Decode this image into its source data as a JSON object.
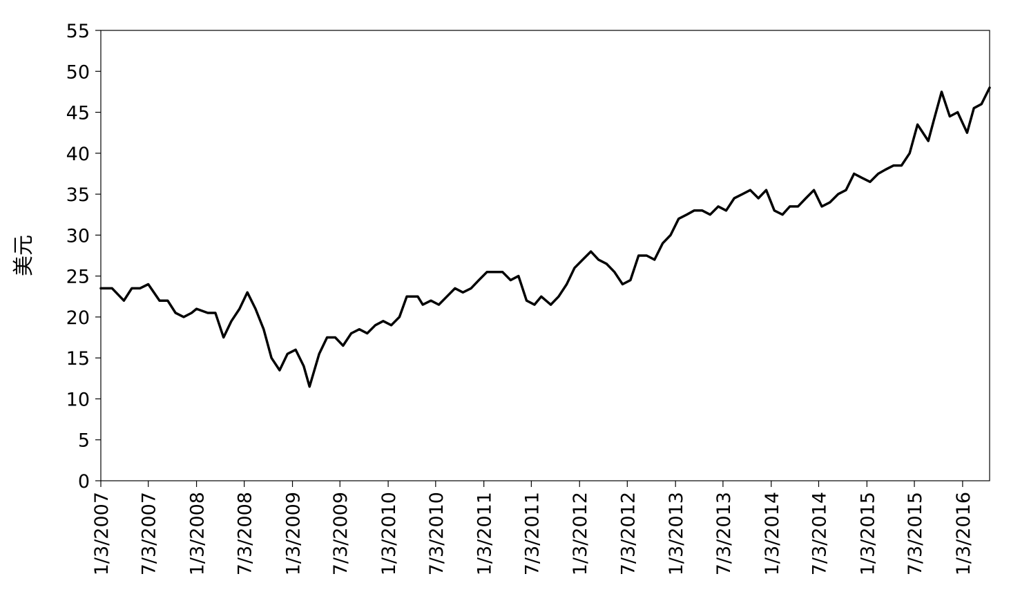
{
  "chart_data": {
    "type": "line",
    "title": "",
    "xlabel": "",
    "ylabel": "美元",
    "ylim": [
      0,
      55
    ],
    "yticks": [
      0,
      5,
      10,
      15,
      20,
      25,
      30,
      35,
      40,
      45,
      50,
      55
    ],
    "xlim": [
      "2007-01-03",
      "2016-04-15"
    ],
    "x_tick_labels": [
      "1/3/2007",
      "7/3/2007",
      "1/3/2008",
      "7/3/2008",
      "1/3/2009",
      "7/3/2009",
      "1/3/2010",
      "7/3/2010",
      "1/3/2011",
      "7/3/2011",
      "1/3/2012",
      "7/3/2012",
      "1/3/2013",
      "7/3/2013",
      "1/3/2014",
      "7/3/2014",
      "1/3/2015",
      "7/3/2015",
      "1/3/2016"
    ],
    "grid": false,
    "legend": "none",
    "line_color": "#000000",
    "series": [
      {
        "x": [
          "2007-01-03",
          "2007-02-15",
          "2007-04-01",
          "2007-05-01",
          "2007-06-01",
          "2007-07-03",
          "2007-08-15",
          "2007-09-15",
          "2007-10-15",
          "2007-11-15",
          "2007-12-15",
          "2008-01-03",
          "2008-02-15",
          "2008-03-15",
          "2008-04-15",
          "2008-05-15",
          "2008-06-15",
          "2008-07-15",
          "2008-08-15",
          "2008-09-15",
          "2008-10-15",
          "2008-11-15",
          "2008-12-15",
          "2009-01-15",
          "2009-02-15",
          "2009-03-09",
          "2009-04-15",
          "2009-05-15",
          "2009-06-15",
          "2009-07-15",
          "2009-08-15",
          "2009-09-15",
          "2009-10-15",
          "2009-11-15",
          "2009-12-15",
          "2010-01-15",
          "2010-02-15",
          "2010-03-15",
          "2010-04-26",
          "2010-05-15",
          "2010-06-15",
          "2010-07-15",
          "2010-08-15",
          "2010-09-15",
          "2010-10-15",
          "2010-11-15",
          "2010-12-15",
          "2011-01-15",
          "2011-02-15",
          "2011-03-15",
          "2011-04-15",
          "2011-05-15",
          "2011-06-15",
          "2011-07-15",
          "2011-08-10",
          "2011-09-15",
          "2011-10-15",
          "2011-11-15",
          "2011-12-15",
          "2012-01-15",
          "2012-02-15",
          "2012-03-15",
          "2012-04-15",
          "2012-05-15",
          "2012-06-15",
          "2012-07-15",
          "2012-08-15",
          "2012-09-15",
          "2012-10-15",
          "2012-11-15",
          "2012-12-15",
          "2013-01-15",
          "2013-02-15",
          "2013-03-15",
          "2013-04-15",
          "2013-05-15",
          "2013-06-15",
          "2013-07-15",
          "2013-08-15",
          "2013-09-15",
          "2013-10-15",
          "2013-11-15",
          "2013-12-15",
          "2014-01-15",
          "2014-02-15",
          "2014-03-15",
          "2014-04-15",
          "2014-05-15",
          "2014-06-15",
          "2014-07-15",
          "2014-08-15",
          "2014-09-15",
          "2014-10-15",
          "2014-11-15",
          "2014-12-15",
          "2015-01-15",
          "2015-02-15",
          "2015-03-15",
          "2015-04-15",
          "2015-05-15",
          "2015-06-15",
          "2015-07-15",
          "2015-08-25",
          "2015-09-15",
          "2015-10-15",
          "2015-11-15",
          "2015-12-15",
          "2016-01-20",
          "2016-02-15",
          "2016-03-15",
          "2016-04-15"
        ],
        "y": [
          23.5,
          23.5,
          22.0,
          23.5,
          23.5,
          24.0,
          22.0,
          22.0,
          20.5,
          20.0,
          20.5,
          21.0,
          20.5,
          20.5,
          17.5,
          19.5,
          21.0,
          23.0,
          21.0,
          18.5,
          15.0,
          13.5,
          15.5,
          16.0,
          14.0,
          11.5,
          15.5,
          17.5,
          17.5,
          16.5,
          18.0,
          18.5,
          18.0,
          19.0,
          19.5,
          19.0,
          20.0,
          22.5,
          22.5,
          21.5,
          22.0,
          21.5,
          22.5,
          23.5,
          23.0,
          23.5,
          24.5,
          25.5,
          25.5,
          25.5,
          24.5,
          25.0,
          22.0,
          21.5,
          22.5,
          21.5,
          22.5,
          24.0,
          26.0,
          27.0,
          28.0,
          27.0,
          26.5,
          25.5,
          24.0,
          24.5,
          27.5,
          27.5,
          27.0,
          29.0,
          30.0,
          32.0,
          32.5,
          33.0,
          33.0,
          32.5,
          33.5,
          33.0,
          34.5,
          35.0,
          35.5,
          34.5,
          35.5,
          33.0,
          32.5,
          33.5,
          33.5,
          34.5,
          35.5,
          33.5,
          34.0,
          35.0,
          35.5,
          37.5,
          37.0,
          36.5,
          37.5,
          38.0,
          38.5,
          38.5,
          40.0,
          43.5,
          41.5,
          44.0,
          47.5,
          44.5,
          45.0,
          42.5,
          45.5,
          46.0,
          48.0
        ]
      }
    ]
  }
}
